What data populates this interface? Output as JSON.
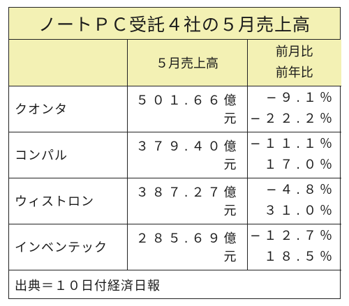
{
  "title": "ノートＰＣ受託４社の５月売上高",
  "columns": {
    "company": "",
    "sales": "５月売上高",
    "mom": "前月比",
    "yoy": "前年比"
  },
  "rows": [
    {
      "company": "クオンタ",
      "sales": "５０１.６６億元",
      "mom": "−９.１％",
      "yoy": "−２２.２％"
    },
    {
      "company": "コンパル",
      "sales": "３７９.４０億元",
      "mom": "−１１.１％",
      "yoy": "１７.０％"
    },
    {
      "company": "ウィストロン",
      "sales": "３８７.２７億元",
      "mom": "−４.８％",
      "yoy": "３１.０％"
    },
    {
      "company": "インベンテック",
      "sales": "２８５.６９億元",
      "mom": "−１２.７％",
      "yoy": "１８.５％"
    }
  ],
  "source": "出典＝１０日付経済日報",
  "colors": {
    "header_bg": "#f3f1b4",
    "border": "#222222"
  }
}
